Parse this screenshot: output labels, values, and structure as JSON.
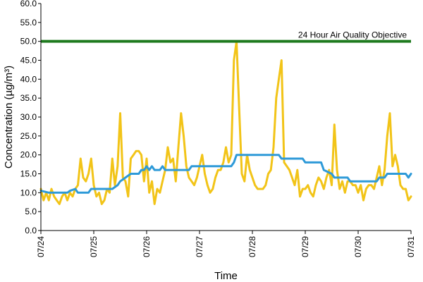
{
  "chart_data": {
    "type": "line",
    "xlabel": "Time",
    "ylabel": "Concentration (µg/m³)",
    "ylim": [
      0,
      60
    ],
    "y_ticks": [
      "0.0",
      "5.0",
      "10.0",
      "15.0",
      "20.0",
      "25.0",
      "30.0",
      "35.0",
      "40.0",
      "45.0",
      "50.0",
      "55.0",
      "60.0"
    ],
    "xlim": [
      0,
      7
    ],
    "x_ticks": [
      "07/24",
      "07/25",
      "07/26",
      "07/27",
      "07/28",
      "07/29",
      "07/30",
      "07/31"
    ],
    "grid": false,
    "annotations": [
      {
        "text": "24 Hour Air Quality Objective",
        "y": 50
      }
    ],
    "objective": {
      "value": 50,
      "color": "#1e7a1e"
    },
    "series": [
      {
        "color": "#f2c418",
        "points": [
          [
            0.0,
            11
          ],
          [
            0.05,
            8
          ],
          [
            0.1,
            10
          ],
          [
            0.15,
            8
          ],
          [
            0.2,
            11
          ],
          [
            0.25,
            9
          ],
          [
            0.3,
            8
          ],
          [
            0.35,
            7
          ],
          [
            0.4,
            9
          ],
          [
            0.45,
            10
          ],
          [
            0.5,
            8
          ],
          [
            0.55,
            10
          ],
          [
            0.6,
            9
          ],
          [
            0.65,
            11
          ],
          [
            0.7,
            12
          ],
          [
            0.75,
            19
          ],
          [
            0.8,
            14
          ],
          [
            0.85,
            13
          ],
          [
            0.9,
            15
          ],
          [
            0.95,
            19
          ],
          [
            1.0,
            12
          ],
          [
            1.05,
            9
          ],
          [
            1.1,
            10
          ],
          [
            1.15,
            7
          ],
          [
            1.2,
            8
          ],
          [
            1.25,
            11
          ],
          [
            1.3,
            10
          ],
          [
            1.35,
            19
          ],
          [
            1.4,
            12
          ],
          [
            1.45,
            17
          ],
          [
            1.5,
            31
          ],
          [
            1.55,
            14
          ],
          [
            1.6,
            13
          ],
          [
            1.65,
            9
          ],
          [
            1.7,
            19
          ],
          [
            1.75,
            20
          ],
          [
            1.8,
            21
          ],
          [
            1.85,
            21
          ],
          [
            1.9,
            20
          ],
          [
            1.95,
            13
          ],
          [
            2.0,
            19
          ],
          [
            2.05,
            10
          ],
          [
            2.1,
            13
          ],
          [
            2.15,
            7
          ],
          [
            2.2,
            11
          ],
          [
            2.25,
            10
          ],
          [
            2.3,
            13
          ],
          [
            2.35,
            16
          ],
          [
            2.4,
            22
          ],
          [
            2.45,
            18
          ],
          [
            2.5,
            19
          ],
          [
            2.55,
            13
          ],
          [
            2.6,
            22
          ],
          [
            2.65,
            31
          ],
          [
            2.7,
            25
          ],
          [
            2.75,
            17
          ],
          [
            2.8,
            14
          ],
          [
            2.85,
            13
          ],
          [
            2.9,
            12
          ],
          [
            2.95,
            14
          ],
          [
            3.0,
            17
          ],
          [
            3.05,
            20
          ],
          [
            3.1,
            15
          ],
          [
            3.15,
            12
          ],
          [
            3.2,
            10
          ],
          [
            3.25,
            11
          ],
          [
            3.3,
            14
          ],
          [
            3.35,
            16
          ],
          [
            3.4,
            16
          ],
          [
            3.45,
            18
          ],
          [
            3.5,
            22
          ],
          [
            3.55,
            18
          ],
          [
            3.6,
            20
          ],
          [
            3.65,
            45
          ],
          [
            3.7,
            50
          ],
          [
            3.75,
            32
          ],
          [
            3.8,
            15
          ],
          [
            3.85,
            13
          ],
          [
            3.9,
            20
          ],
          [
            3.95,
            16
          ],
          [
            4.0,
            14
          ],
          [
            4.05,
            12
          ],
          [
            4.1,
            11
          ],
          [
            4.15,
            11
          ],
          [
            4.2,
            11
          ],
          [
            4.25,
            12
          ],
          [
            4.3,
            15
          ],
          [
            4.35,
            16
          ],
          [
            4.4,
            22
          ],
          [
            4.45,
            35
          ],
          [
            4.5,
            40
          ],
          [
            4.55,
            45
          ],
          [
            4.6,
            18
          ],
          [
            4.65,
            17
          ],
          [
            4.7,
            16
          ],
          [
            4.75,
            14
          ],
          [
            4.8,
            12
          ],
          [
            4.85,
            16
          ],
          [
            4.9,
            9
          ],
          [
            4.95,
            11
          ],
          [
            5.0,
            11
          ],
          [
            5.05,
            12
          ],
          [
            5.1,
            10
          ],
          [
            5.15,
            9
          ],
          [
            5.2,
            12
          ],
          [
            5.25,
            14
          ],
          [
            5.3,
            13
          ],
          [
            5.35,
            11
          ],
          [
            5.4,
            14
          ],
          [
            5.45,
            16
          ],
          [
            5.5,
            12
          ],
          [
            5.55,
            28
          ],
          [
            5.6,
            16
          ],
          [
            5.65,
            11
          ],
          [
            5.7,
            13
          ],
          [
            5.75,
            10
          ],
          [
            5.8,
            13
          ],
          [
            5.85,
            13
          ],
          [
            5.9,
            12
          ],
          [
            5.95,
            12
          ],
          [
            6.0,
            10
          ],
          [
            6.05,
            12
          ],
          [
            6.1,
            8
          ],
          [
            6.15,
            11
          ],
          [
            6.2,
            12
          ],
          [
            6.25,
            12
          ],
          [
            6.3,
            11
          ],
          [
            6.35,
            14
          ],
          [
            6.4,
            17
          ],
          [
            6.45,
            12
          ],
          [
            6.5,
            16
          ],
          [
            6.55,
            25
          ],
          [
            6.6,
            31
          ],
          [
            6.65,
            17
          ],
          [
            6.7,
            20
          ],
          [
            6.75,
            17
          ],
          [
            6.8,
            12
          ],
          [
            6.85,
            11
          ],
          [
            6.9,
            11
          ],
          [
            6.95,
            8
          ],
          [
            7.0,
            9
          ]
        ]
      },
      {
        "color": "#2e9ad8",
        "points": [
          [
            0.0,
            10.5
          ],
          [
            0.15,
            10
          ],
          [
            0.5,
            10
          ],
          [
            0.55,
            10.5
          ],
          [
            0.65,
            11
          ],
          [
            0.7,
            10
          ],
          [
            0.9,
            10
          ],
          [
            0.95,
            11
          ],
          [
            1.35,
            11
          ],
          [
            1.45,
            12
          ],
          [
            1.5,
            13
          ],
          [
            1.6,
            14
          ],
          [
            1.7,
            15
          ],
          [
            1.85,
            15
          ],
          [
            1.9,
            16
          ],
          [
            1.95,
            16
          ],
          [
            2.0,
            17
          ],
          [
            2.05,
            16
          ],
          [
            2.1,
            17
          ],
          [
            2.15,
            16
          ],
          [
            2.25,
            16
          ],
          [
            2.3,
            17
          ],
          [
            2.35,
            16
          ],
          [
            2.4,
            16
          ],
          [
            2.8,
            16
          ],
          [
            2.85,
            17
          ],
          [
            3.6,
            17
          ],
          [
            3.65,
            18
          ],
          [
            3.7,
            20
          ],
          [
            4.5,
            20
          ],
          [
            4.55,
            19
          ],
          [
            4.95,
            19
          ],
          [
            5.0,
            18
          ],
          [
            5.3,
            18
          ],
          [
            5.35,
            16
          ],
          [
            5.5,
            15
          ],
          [
            5.55,
            14
          ],
          [
            5.8,
            14
          ],
          [
            5.85,
            13
          ],
          [
            6.35,
            13
          ],
          [
            6.4,
            14
          ],
          [
            6.5,
            14
          ],
          [
            6.55,
            15
          ],
          [
            6.9,
            15
          ],
          [
            6.95,
            14
          ],
          [
            7.0,
            15
          ]
        ]
      }
    ]
  }
}
